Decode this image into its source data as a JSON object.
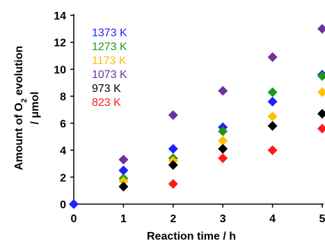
{
  "chart_data": {
    "type": "scatter",
    "title": "",
    "xlabel": "Reaction time / h",
    "ylabel_line1": "Amount of O",
    "ylabel_sub": "2",
    "ylabel_line1_tail": " evolution",
    "ylabel_line2": "/ μmol",
    "xlim": [
      0,
      5
    ],
    "ylim": [
      0,
      14
    ],
    "xticks": [
      "0",
      "1",
      "2",
      "3",
      "4",
      "5"
    ],
    "yticks": [
      "0",
      "2",
      "4",
      "6",
      "8",
      "10",
      "12",
      "14"
    ],
    "grid": false,
    "legend_position": "top-left",
    "marker": "diamond",
    "series": [
      {
        "name": "1373 K",
        "color": "#1f1fff",
        "x": [
          0,
          1,
          2,
          3,
          4,
          5
        ],
        "y": [
          0,
          2.5,
          4.1,
          5.7,
          7.6,
          9.6
        ]
      },
      {
        "name": "1273 K",
        "color": "#1a9a1a",
        "x": [
          1,
          2,
          3,
          4,
          5
        ],
        "y": [
          1.9,
          3.4,
          5.4,
          8.3,
          9.5
        ]
      },
      {
        "name": "1173 K",
        "color": "#ffc000",
        "x": [
          1,
          2,
          3,
          4,
          5
        ],
        "y": [
          1.7,
          3.2,
          4.7,
          6.5,
          8.3
        ]
      },
      {
        "name": "1073 K",
        "color": "#7030a0",
        "x": [
          1,
          2,
          3,
          4,
          5
        ],
        "y": [
          3.3,
          6.6,
          8.4,
          10.9,
          13.0
        ]
      },
      {
        "name": "973 K",
        "color": "#000000",
        "x": [
          1,
          2,
          3,
          4,
          5
        ],
        "y": [
          1.3,
          2.9,
          4.1,
          5.8,
          6.7
        ]
      },
      {
        "name": "823 K",
        "color": "#ff1a1a",
        "x": [
          2,
          3,
          4,
          5
        ],
        "y": [
          1.5,
          3.4,
          4.0,
          5.6
        ]
      }
    ]
  }
}
